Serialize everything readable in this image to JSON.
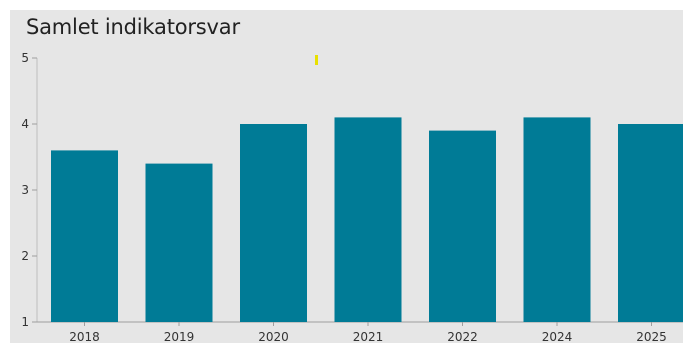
{
  "chart_data": {
    "type": "bar",
    "title": "Samlet indikatorsvar",
    "categories": [
      "2018",
      "2019",
      "2020",
      "2021",
      "2022",
      "2024",
      "2025"
    ],
    "values": [
      3.6,
      3.4,
      4.0,
      4.1,
      3.9,
      4.1,
      4.0
    ],
    "xlabel": "",
    "ylabel": "",
    "ylim": [
      1,
      5
    ],
    "yticks": [
      1,
      2,
      3,
      4,
      5
    ],
    "grid": false,
    "bar_color": "#007b96",
    "background_color": "#e6e6e6"
  }
}
